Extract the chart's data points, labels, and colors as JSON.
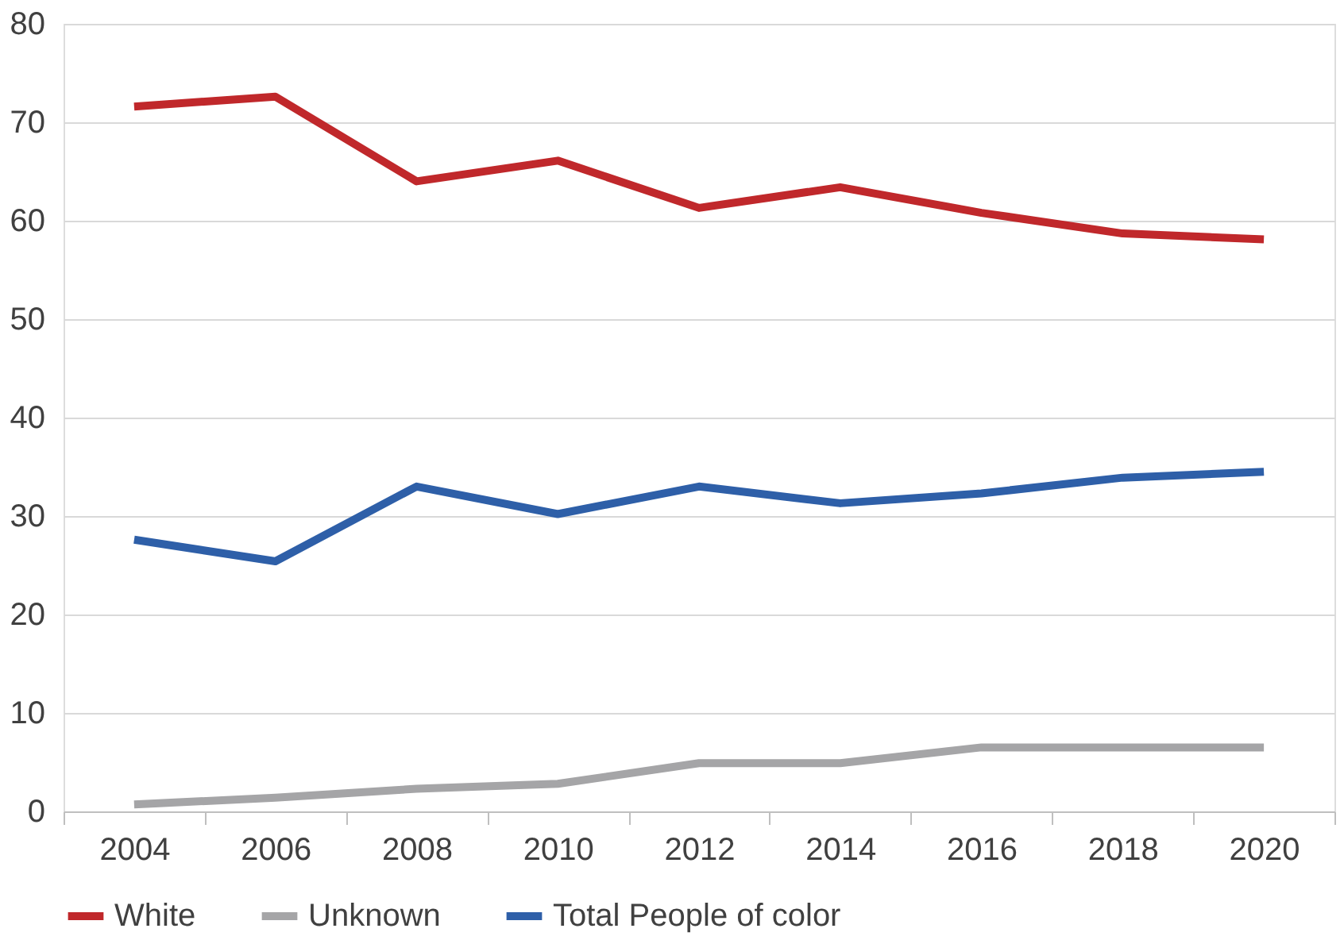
{
  "chart_data": {
    "type": "line",
    "categories": [
      "2004",
      "2006",
      "2008",
      "2010",
      "2012",
      "2014",
      "2016",
      "2018",
      "2020"
    ],
    "series": [
      {
        "name": "White",
        "color": "#c0282b",
        "values": [
          71.6,
          72.6,
          64.0,
          66.1,
          61.3,
          63.4,
          60.8,
          58.7,
          58.1
        ]
      },
      {
        "name": "Unknown",
        "color": "#a5a5a7",
        "values": [
          0.7,
          1.4,
          2.3,
          2.8,
          4.9,
          4.9,
          6.5,
          6.5,
          6.5
        ]
      },
      {
        "name": "Total People of color",
        "color": "#2e5fa8",
        "values": [
          27.6,
          25.4,
          33.0,
          30.2,
          33.0,
          31.3,
          32.3,
          33.9,
          34.5
        ]
      }
    ],
    "ylim": [
      0,
      80
    ],
    "yticks": [
      0,
      10,
      20,
      30,
      40,
      50,
      60,
      70,
      80
    ],
    "grid": "y",
    "legend": "bottom",
    "marker": "none",
    "line_style": "solid"
  }
}
